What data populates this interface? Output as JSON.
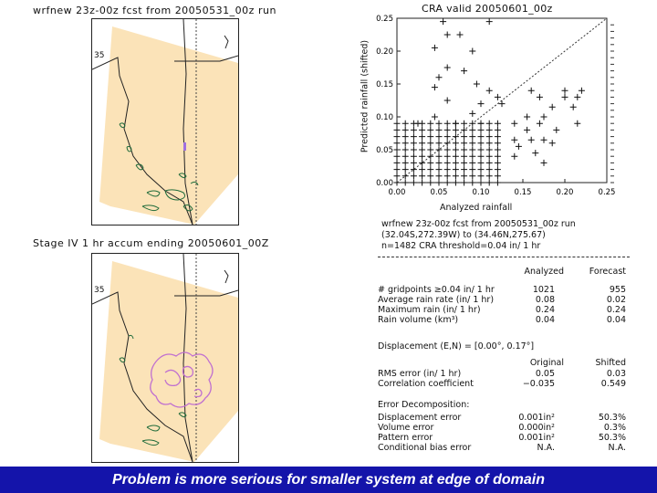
{
  "top_map": {
    "title": "wrfnew 23z-00z fcst from 20050531_00z run",
    "lat_label": "35"
  },
  "bottom_map": {
    "title": "Stage IV 1 hr accum ending 20050601_00Z",
    "lat_label": "35"
  },
  "scatter": {
    "title": "CRA valid 20050601_00z",
    "ylabel": "Predicted rainfall (shifted)",
    "xlabel": "Analyzed rainfall",
    "y_ticks": [
      "0.25",
      "0.20",
      "0.15",
      "0.10",
      "0.05",
      "0.00"
    ],
    "x_ticks": [
      "0.00",
      "0.05",
      "0.10",
      "0.15",
      "0.20",
      "0.25"
    ]
  },
  "chart_data": {
    "type": "scatter",
    "title": "CRA valid 20050601_00z",
    "xlabel": "Analyzed rainfall",
    "ylabel": "Predicted rainfall (shifted)",
    "xlim": [
      0,
      0.25
    ],
    "ylim": [
      0,
      0.25
    ],
    "grid": false,
    "reference_line": "1:1 diagonal",
    "points": [
      [
        0.055,
        0.245
      ],
      [
        0.11,
        0.245
      ],
      [
        0.06,
        0.225
      ],
      [
        0.075,
        0.225
      ],
      [
        0.045,
        0.205
      ],
      [
        0.09,
        0.2
      ],
      [
        0.06,
        0.175
      ],
      [
        0.08,
        0.17
      ],
      [
        0.05,
        0.16
      ],
      [
        0.095,
        0.15
      ],
      [
        0.045,
        0.145
      ],
      [
        0.11,
        0.14
      ],
      [
        0.16,
        0.14
      ],
      [
        0.2,
        0.14
      ],
      [
        0.22,
        0.14
      ],
      [
        0.17,
        0.13
      ],
      [
        0.2,
        0.13
      ],
      [
        0.215,
        0.13
      ],
      [
        0.12,
        0.13
      ],
      [
        0.06,
        0.125
      ],
      [
        0.1,
        0.12
      ],
      [
        0.125,
        0.12
      ],
      [
        0.185,
        0.115
      ],
      [
        0.21,
        0.115
      ],
      [
        0.09,
        0.105
      ],
      [
        0.045,
        0.1
      ],
      [
        0.155,
        0.1
      ],
      [
        0.175,
        0.1
      ],
      [
        0.025,
        0.09
      ],
      [
        0.07,
        0.09
      ],
      [
        0.1,
        0.09
      ],
      [
        0.14,
        0.09
      ],
      [
        0.17,
        0.09
      ],
      [
        0.215,
        0.09
      ],
      [
        0.155,
        0.08
      ],
      [
        0.19,
        0.08
      ],
      [
        0.14,
        0.065
      ],
      [
        0.16,
        0.065
      ],
      [
        0.175,
        0.065
      ],
      [
        0.185,
        0.06
      ],
      [
        0.145,
        0.055
      ],
      [
        0.165,
        0.045
      ],
      [
        0.14,
        0.04
      ],
      [
        0.175,
        0.03
      ]
    ],
    "dense_cluster": {
      "x_range": [
        0.0,
        0.12
      ],
      "y_range": [
        0.0,
        0.09
      ]
    }
  },
  "info": {
    "line1": "wrfnew 23z-00z fcst from 20050531_00z run",
    "line2": "(32.04S,272.39W) to (34.46N,275.67)",
    "line3": "n=1482   CRA threshold=0.04 in/ 1 hr"
  },
  "stats": {
    "col_analyzed": "Analyzed",
    "col_forecast": "Forecast",
    "rows": [
      {
        "label": "# gridpoints ≥0.04 in/ 1 hr",
        "analyzed": "1021",
        "forecast": "955"
      },
      {
        "label": "Average rain rate (in/ 1 hr)",
        "analyzed": "0.08",
        "forecast": "0.02"
      },
      {
        "label": "Maximum rain (in/ 1 hr)",
        "analyzed": "0.24",
        "forecast": "0.24"
      },
      {
        "label": "Rain volume (km³)",
        "analyzed": "0.04",
        "forecast": "0.04"
      }
    ],
    "displacement": "Displacement (E,N) = [0.00°, 0.17°]",
    "col_original": "Original",
    "col_shifted": "Shifted",
    "rows2": [
      {
        "label": "RMS error (in/ 1 hr)",
        "original": "0.05",
        "shifted": "0.03"
      },
      {
        "label": "Correlation coefficient",
        "original": "−0.035",
        "shifted": "0.549"
      }
    ],
    "decomp_title": "Error Decomposition:",
    "rows3": [
      {
        "label": "Displacement error",
        "value": "0.001in²",
        "pct": "50.3%"
      },
      {
        "label": "Volume error",
        "value": "0.000in²",
        "pct": "0.3%"
      },
      {
        "label": "Pattern error",
        "value": "0.001in²",
        "pct": "50.3%"
      },
      {
        "label": "Conditional bias error",
        "value": "N.A.",
        "pct": "N.A."
      }
    ]
  },
  "caption": "Problem is more serious for smaller system at edge of domain",
  "colors": {
    "domain_fill": "#fbe3b8",
    "caption_bg": "#1414aa",
    "rain_green": "#1f6b3a",
    "rain_purple": "#c070d0"
  }
}
